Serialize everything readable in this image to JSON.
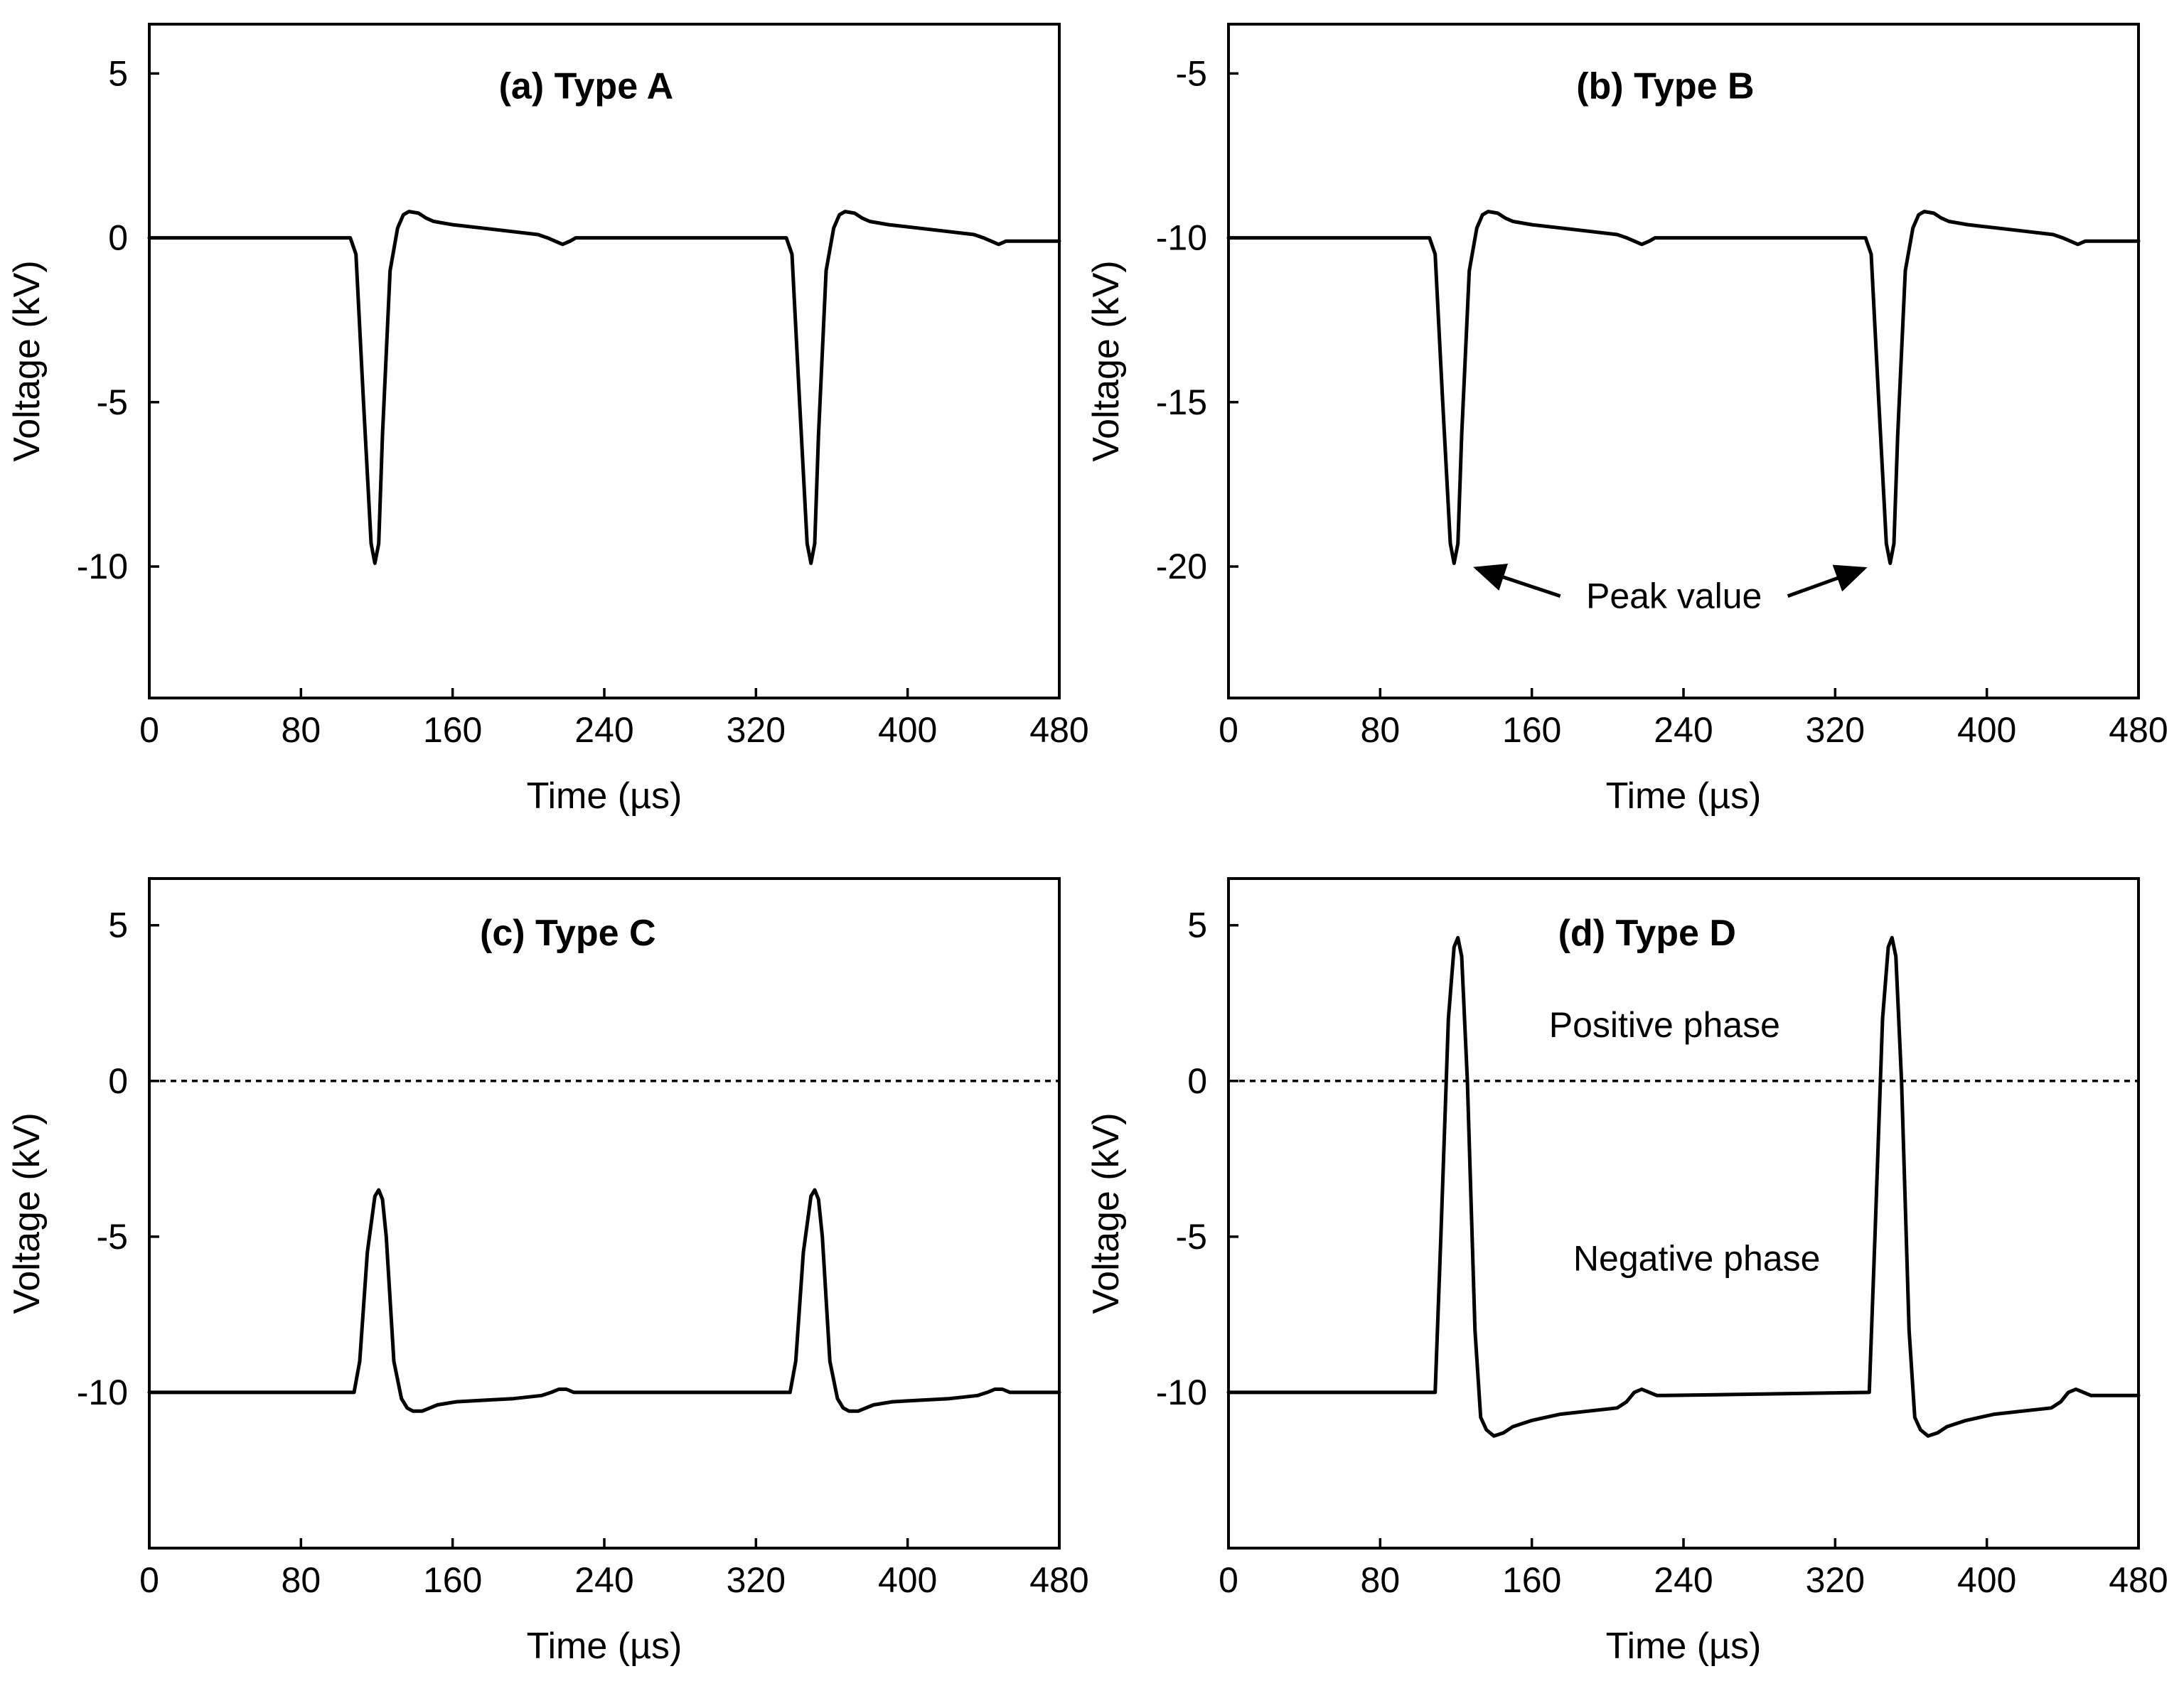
{
  "chart_data": [
    {
      "type": "line",
      "title": "(a) Type A",
      "xlabel": "Time (µs)",
      "ylabel": "Voltage (kV)",
      "xlim": [
        0,
        480
      ],
      "ylim": [
        -14,
        6.5
      ],
      "xticks": [
        0,
        80,
        160,
        240,
        320,
        400,
        480
      ],
      "yticks": [
        5,
        0,
        -5,
        -10
      ],
      "xtick_labels": [
        "0",
        "80",
        "160",
        "240",
        "320",
        "400",
        "480"
      ],
      "ytick_labels": [
        "5",
        "0",
        "-5",
        "-10"
      ],
      "reference_line": null,
      "series": [
        {
          "name": "Type A",
          "x": [
            0,
            106,
            109,
            113,
            117,
            119,
            121,
            123,
            127,
            131,
            134,
            137,
            142,
            146,
            150,
            160,
            175,
            190,
            205,
            210,
            214,
            218,
            222,
            225,
            228,
            336,
            339,
            343,
            347,
            349,
            351,
            353,
            357,
            361,
            364,
            367,
            372,
            376,
            380,
            390,
            405,
            420,
            435,
            440,
            444,
            448,
            452,
            456,
            480
          ],
          "y": [
            0,
            0,
            -0.5,
            -5,
            -9.3,
            -9.9,
            -9.3,
            -6,
            -1,
            0.3,
            0.7,
            0.8,
            0.75,
            0.6,
            0.5,
            0.4,
            0.3,
            0.2,
            0.1,
            0.0,
            -0.1,
            -0.2,
            -0.1,
            0,
            0,
            0,
            -0.5,
            -5,
            -9.3,
            -9.9,
            -9.3,
            -6,
            -1,
            0.3,
            0.7,
            0.8,
            0.75,
            0.6,
            0.5,
            0.4,
            0.3,
            0.2,
            0.1,
            0.0,
            -0.1,
            -0.2,
            -0.1,
            -0.1,
            -0.1
          ]
        }
      ],
      "annotations": []
    },
    {
      "type": "line",
      "title": "(b) Type B",
      "xlabel": "Time (µs)",
      "ylabel": "Voltage (kV)",
      "xlim": [
        0,
        480
      ],
      "ylim": [
        -24,
        -3.5
      ],
      "xticks": [
        0,
        80,
        160,
        240,
        320,
        400,
        480
      ],
      "yticks": [
        -5,
        -10,
        -15,
        -20
      ],
      "xtick_labels": [
        "0",
        "80",
        "160",
        "240",
        "320",
        "400",
        "480"
      ],
      "ytick_labels": [
        "-5",
        "-10",
        "-15",
        "-20"
      ],
      "reference_line": null,
      "series": [
        {
          "name": "Type B",
          "x": [
            0,
            106,
            109,
            113,
            117,
            119,
            121,
            123,
            127,
            131,
            134,
            137,
            142,
            146,
            150,
            160,
            175,
            190,
            205,
            210,
            214,
            218,
            222,
            225,
            228,
            336,
            339,
            343,
            347,
            349,
            351,
            353,
            357,
            361,
            364,
            367,
            372,
            376,
            380,
            390,
            405,
            420,
            435,
            440,
            444,
            448,
            452,
            456,
            480
          ],
          "y": [
            -10,
            -10,
            -10.5,
            -15,
            -19.3,
            -19.9,
            -19.3,
            -16,
            -11,
            -9.7,
            -9.3,
            -9.2,
            -9.25,
            -9.4,
            -9.5,
            -9.6,
            -9.7,
            -9.8,
            -9.9,
            -10,
            -10.1,
            -10.2,
            -10.1,
            -10,
            -10,
            -10,
            -10.5,
            -15,
            -19.3,
            -19.9,
            -19.3,
            -16,
            -11,
            -9.7,
            -9.3,
            -9.2,
            -9.25,
            -9.4,
            -9.5,
            -9.6,
            -9.7,
            -9.8,
            -9.9,
            -10,
            -10.1,
            -10.2,
            -10.1,
            -10.1,
            -10.1
          ]
        }
      ],
      "annotations": [
        {
          "text": "Peak value",
          "x": 235,
          "y": -20.9,
          "arrows_to": [
            [
              123,
              -19.9
            ],
            [
              343,
              -19.9
            ]
          ]
        }
      ]
    },
    {
      "type": "line",
      "title": "(c) Type C",
      "xlabel": "Time (µs)",
      "ylabel": "Voltage (kV)",
      "xlim": [
        0,
        480
      ],
      "ylim": [
        -15,
        6.5
      ],
      "xticks": [
        0,
        80,
        160,
        240,
        320,
        400,
        480
      ],
      "yticks": [
        5,
        0,
        -5,
        -10
      ],
      "xtick_labels": [
        "0",
        "80",
        "160",
        "240",
        "320",
        "400",
        "480"
      ],
      "ytick_labels": [
        "5",
        "0",
        "-5",
        "-10"
      ],
      "reference_line": 0,
      "series": [
        {
          "name": "Type C",
          "x": [
            0,
            108,
            111,
            115,
            119,
            121,
            123,
            125,
            129,
            133,
            136,
            139,
            144,
            148,
            152,
            162,
            177,
            192,
            207,
            212,
            216,
            220,
            224,
            227,
            230,
            338,
            341,
            345,
            349,
            351,
            353,
            355,
            359,
            363,
            366,
            369,
            374,
            378,
            382,
            392,
            407,
            422,
            437,
            442,
            446,
            450,
            454,
            458,
            480
          ],
          "y": [
            -10,
            -10,
            -9,
            -5.5,
            -3.7,
            -3.5,
            -3.8,
            -5,
            -9,
            -10.2,
            -10.5,
            -10.6,
            -10.6,
            -10.5,
            -10.4,
            -10.3,
            -10.25,
            -10.2,
            -10.1,
            -10,
            -9.9,
            -9.9,
            -10,
            -10,
            -10,
            -10,
            -9,
            -5.5,
            -3.7,
            -3.5,
            -3.8,
            -5,
            -9,
            -10.2,
            -10.5,
            -10.6,
            -10.6,
            -10.5,
            -10.4,
            -10.3,
            -10.25,
            -10.2,
            -10.1,
            -10,
            -9.9,
            -9.9,
            -10,
            -10,
            -10
          ]
        }
      ],
      "annotations": []
    },
    {
      "type": "line",
      "title": "(d) Type D",
      "xlabel": "Time (µs)",
      "ylabel": "Voltage (kV)",
      "xlim": [
        0,
        480
      ],
      "ylim": [
        -15,
        6.5
      ],
      "xticks": [
        0,
        80,
        160,
        240,
        320,
        400,
        480
      ],
      "yticks": [
        5,
        0,
        -5,
        -10
      ],
      "xtick_labels": [
        "0",
        "80",
        "160",
        "240",
        "320",
        "400",
        "480"
      ],
      "ytick_labels": [
        "5",
        "0",
        "-5",
        "-10"
      ],
      "reference_line": 0,
      "series": [
        {
          "name": "Type D",
          "x": [
            0,
            109,
            112,
            116,
            119,
            121,
            123,
            126,
            130,
            133,
            136,
            140,
            145,
            150,
            160,
            175,
            190,
            205,
            210,
            214,
            218,
            222,
            226,
            230,
            338,
            341,
            345,
            348,
            350,
            352,
            355,
            359,
            362,
            365,
            369,
            374,
            379,
            389,
            404,
            419,
            434,
            439,
            443,
            447,
            451,
            455,
            480
          ],
          "y": [
            -10,
            -10,
            -5,
            2,
            4.3,
            4.6,
            4,
            0,
            -8,
            -10.8,
            -11.2,
            -11.4,
            -11.3,
            -11.1,
            -10.9,
            -10.7,
            -10.6,
            -10.5,
            -10.3,
            -10.0,
            -9.9,
            -10.0,
            -10.1,
            -10.1,
            -10,
            -5,
            2,
            4.3,
            4.6,
            4,
            0,
            -8,
            -10.8,
            -11.2,
            -11.4,
            -11.3,
            -11.1,
            -10.9,
            -10.7,
            -10.6,
            -10.5,
            -10.3,
            -10.0,
            -9.9,
            -10.0,
            -10.1,
            -10.1
          ]
        }
      ],
      "annotations": [
        {
          "text": "Positive phase",
          "x": 230,
          "y": 1.8
        },
        {
          "text": "Negative phase",
          "x": 247,
          "y": -5.7
        }
      ]
    }
  ]
}
